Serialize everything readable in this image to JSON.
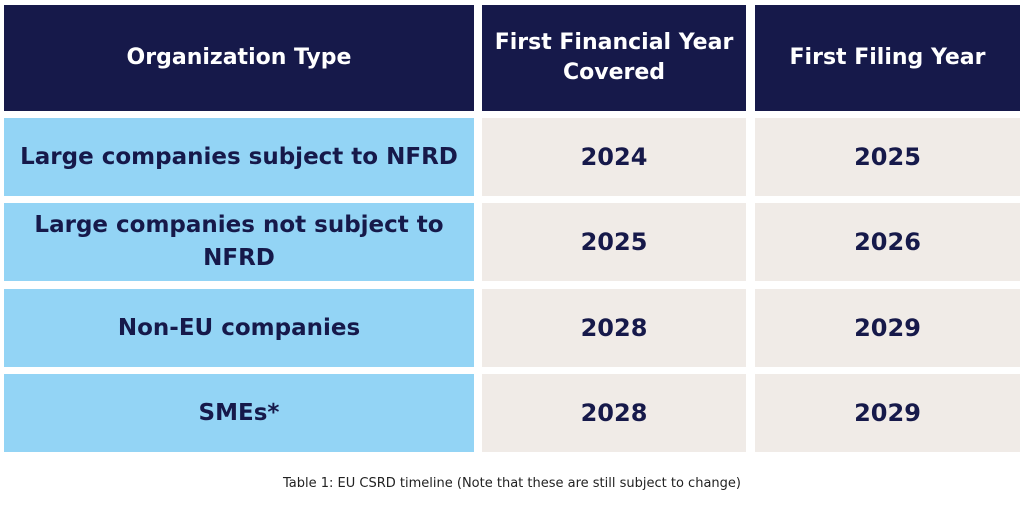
{
  "table": {
    "header": [
      "Organization Type",
      "First Financial Year Covered",
      "First Filing Year"
    ],
    "rows": [
      [
        "Large companies subject to NFRD",
        "2024",
        "2025"
      ],
      [
        "Large companies not subject to NFRD",
        "2025",
        "2026"
      ],
      [
        "Non-EU companies",
        "2028",
        "2029"
      ],
      [
        "SMEs*",
        "2028",
        "2029"
      ]
    ]
  },
  "caption": "Table 1: EU CSRD timeline (Note that these are still subject to change)"
}
